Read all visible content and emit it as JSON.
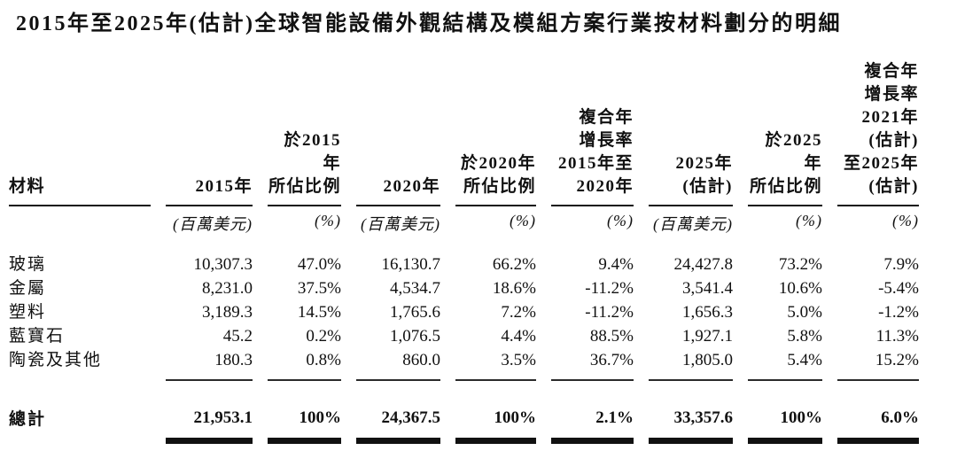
{
  "title": "2015年至2025年(估計)全球智能設備外觀結構及模組方案行業按材料劃分的明細",
  "table": {
    "columns": [
      {
        "label": "材料",
        "unit": ""
      },
      {
        "label": "2015年",
        "unit": "(百萬美元)"
      },
      {
        "label": "於2015年\n所佔比例",
        "unit": "(%)"
      },
      {
        "label": "2020年",
        "unit": "(百萬美元)"
      },
      {
        "label": "於2020年\n所佔比例",
        "unit": "(%)"
      },
      {
        "label": "複合年\n增長率\n2015年至\n2020年",
        "unit": "(%)"
      },
      {
        "label": "2025年\n(估計)",
        "unit": "(百萬美元)"
      },
      {
        "label": "於2025年\n所佔比例",
        "unit": "(%)"
      },
      {
        "label": "複合年\n增長率\n2021年\n(估計)\n至2025年\n(估計)",
        "unit": "(%)"
      }
    ],
    "rows": [
      {
        "material": "玻璃",
        "values": [
          "10,307.3",
          "47.0%",
          "16,130.7",
          "66.2%",
          "9.4%",
          "24,427.8",
          "73.2%",
          "7.9%"
        ]
      },
      {
        "material": "金屬",
        "values": [
          "8,231.0",
          "37.5%",
          "4,534.7",
          "18.6%",
          "-11.2%",
          "3,541.4",
          "10.6%",
          "-5.4%"
        ]
      },
      {
        "material": "塑料",
        "values": [
          "3,189.3",
          "14.5%",
          "1,765.6",
          "7.2%",
          "-11.2%",
          "1,656.3",
          "5.0%",
          "-1.2%"
        ]
      },
      {
        "material": "藍寶石",
        "values": [
          "45.2",
          "0.2%",
          "1,076.5",
          "4.4%",
          "88.5%",
          "1,927.1",
          "5.8%",
          "11.3%"
        ]
      },
      {
        "material": "陶瓷及其他",
        "values": [
          "180.3",
          "0.8%",
          "860.0",
          "3.5%",
          "36.7%",
          "1,805.0",
          "5.4%",
          "15.2%"
        ]
      }
    ],
    "total": {
      "material": "總計",
      "values": [
        "21,953.1",
        "100%",
        "24,367.5",
        "100%",
        "2.1%",
        "33,357.6",
        "100%",
        "6.0%"
      ]
    }
  }
}
